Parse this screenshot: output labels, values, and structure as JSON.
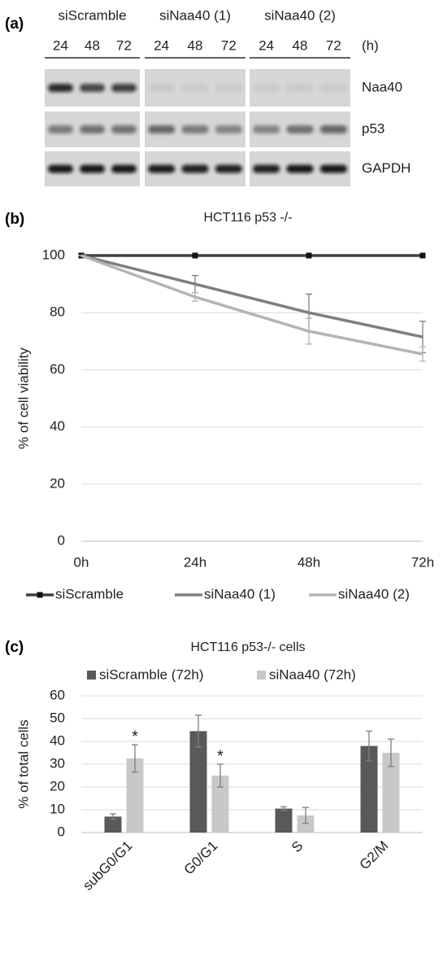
{
  "panel_labels": [
    "(a)",
    "(b)",
    "(c)"
  ],
  "blot": {
    "groups": [
      {
        "name": "siScramble",
        "times": [
          "24",
          "48",
          "72"
        ]
      },
      {
        "name": "siNaa40 (1)",
        "times": [
          "24",
          "48",
          "72"
        ]
      },
      {
        "name": "siNaa40 (2)",
        "times": [
          "24",
          "48",
          "72"
        ]
      }
    ],
    "unit": "(h)",
    "rows": [
      "Naa40",
      "p53",
      "GAPDH"
    ]
  },
  "chart_data": [
    {
      "type": "line",
      "title": "HCT116 p53 -/-",
      "y_label": "% of cell viability",
      "categories": [
        "0h",
        "24h",
        "48h",
        "72h"
      ],
      "ylim": [
        0,
        100
      ],
      "yticks": [
        0,
        20,
        40,
        60,
        80,
        100
      ],
      "grid": true,
      "legend": "bottom",
      "series": [
        {
          "name": "siScramble",
          "color": "#404040",
          "marker": "square",
          "values": [
            100,
            100,
            100,
            100
          ]
        },
        {
          "name": "siNaa40 (1)",
          "color": "#7f7f7f",
          "values": [
            100,
            90,
            80,
            71.5
          ],
          "errors": [
            0,
            3,
            6.5,
            5.5
          ]
        },
        {
          "name": "siNaa40 (2)",
          "color": "#b4b4b4",
          "values": [
            100,
            85.5,
            73.5,
            65.5
          ],
          "errors": [
            0,
            1.5,
            4.5,
            2.5
          ]
        }
      ]
    },
    {
      "type": "bar",
      "title": "HCT116 p53-/- cells",
      "y_label": "% of total cells",
      "categories": [
        "subG0/G1",
        "G0/G1",
        "S",
        "G2/M"
      ],
      "ylim": [
        0,
        60
      ],
      "yticks": [
        0,
        10,
        20,
        30,
        40,
        50,
        60
      ],
      "grid": true,
      "legend": "top",
      "series": [
        {
          "name": "siScramble (72h)",
          "color": "#595959",
          "values": [
            7,
            44.5,
            10.5,
            38
          ],
          "errors": [
            1.2,
            7,
            0.8,
            6.5
          ]
        },
        {
          "name": "siNaa40 (72h)",
          "color": "#c8c8c8",
          "values": [
            32.5,
            25,
            7.5,
            35
          ],
          "errors": [
            6,
            5,
            3.5,
            6
          ],
          "annotations": [
            "*",
            "*",
            null,
            null
          ]
        }
      ]
    }
  ]
}
